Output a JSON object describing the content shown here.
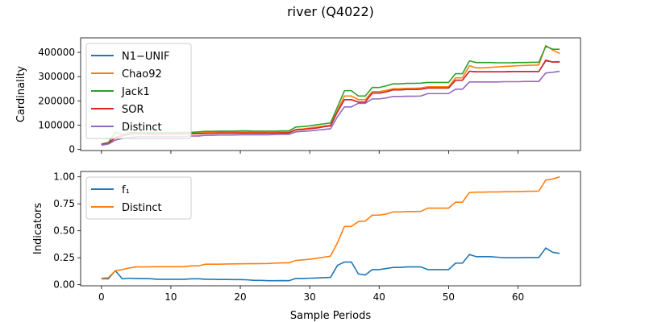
{
  "figure": {
    "title": "river (Q4022)"
  },
  "chart_data": [
    {
      "type": "line",
      "ylabel": "Cardinality",
      "xlabel": "",
      "xlim": [
        -3,
        69
      ],
      "ylim": [
        -5000,
        460000
      ],
      "x_ticks": [
        0,
        10,
        20,
        30,
        40,
        50,
        60
      ],
      "y_ticks": [
        0,
        100000,
        200000,
        300000,
        400000
      ],
      "y_tick_labels": [
        "0",
        "100000",
        "200000",
        "300000",
        "400000"
      ],
      "legend_position": "upper-left",
      "x": [
        0,
        1,
        2,
        3,
        4,
        5,
        6,
        7,
        8,
        9,
        10,
        11,
        12,
        13,
        14,
        15,
        16,
        17,
        18,
        19,
        20,
        21,
        22,
        23,
        24,
        25,
        26,
        27,
        28,
        29,
        30,
        31,
        32,
        33,
        34,
        35,
        36,
        37,
        38,
        39,
        40,
        41,
        42,
        43,
        44,
        45,
        46,
        47,
        48,
        49,
        50,
        51,
        52,
        53,
        54,
        55,
        56,
        57,
        58,
        59,
        60,
        61,
        62,
        63,
        64,
        65,
        66
      ],
      "series": [
        {
          "name": "N1−UNIF",
          "color": "#1f77b4",
          "values": [
            20000,
            25000,
            48000,
            55000,
            62000,
            64000,
            64000,
            63000,
            63000,
            63000,
            63000,
            63000,
            64000,
            64000,
            64000,
            66000,
            66000,
            67000,
            67000,
            67000,
            67000,
            67000,
            67000,
            67000,
            67000,
            67000,
            68000,
            68000,
            80000,
            82000,
            85000,
            88000,
            93000,
            97000,
            155000,
            205000,
            205000,
            195000,
            195000,
            232000,
            232000,
            237000,
            245000,
            245000,
            247000,
            247000,
            248000,
            253000,
            253000,
            253000,
            253000,
            285000,
            285000,
            322000,
            320000,
            320000,
            320000,
            320000,
            320000,
            321000,
            321000,
            321000,
            321000,
            321000,
            365000,
            360000,
            362000
          ]
        },
        {
          "name": "Chao92",
          "color": "#ff7f0e",
          "values": [
            20000,
            25000,
            50000,
            58000,
            65000,
            67000,
            67000,
            66000,
            66000,
            66000,
            66000,
            66000,
            67000,
            67000,
            67000,
            70000,
            70000,
            71000,
            71000,
            71000,
            71000,
            71000,
            70000,
            70000,
            70000,
            70000,
            71000,
            71000,
            82000,
            84000,
            88000,
            92000,
            96000,
            100000,
            160000,
            220000,
            220000,
            205000,
            205000,
            238000,
            238000,
            243000,
            250000,
            250000,
            252000,
            252000,
            253000,
            258000,
            258000,
            258000,
            258000,
            295000,
            295000,
            345000,
            336000,
            336000,
            338000,
            340000,
            342000,
            343000,
            345000,
            346000,
            347000,
            348000,
            428000,
            410000,
            395000
          ]
        },
        {
          "name": "Jack1",
          "color": "#2ca02c",
          "values": [
            22000,
            28000,
            70000,
            62000,
            68000,
            70000,
            70000,
            69000,
            69000,
            69000,
            69000,
            69000,
            70000,
            70000,
            72000,
            74000,
            74000,
            75000,
            75000,
            75000,
            76000,
            76000,
            75000,
            75000,
            75000,
            75000,
            76000,
            76000,
            92000,
            94000,
            97000,
            101000,
            105000,
            109000,
            175000,
            242000,
            242000,
            220000,
            220000,
            255000,
            255000,
            262000,
            270000,
            270000,
            272000,
            272000,
            273000,
            276000,
            276000,
            276000,
            276000,
            312000,
            312000,
            365000,
            358000,
            358000,
            358000,
            357000,
            357000,
            357000,
            358000,
            358000,
            359000,
            359000,
            425000,
            413000,
            413000
          ]
        },
        {
          "name": "SOR",
          "color": "#d62728",
          "values": [
            20000,
            25000,
            48000,
            55000,
            62000,
            64000,
            64000,
            63000,
            63000,
            63000,
            63000,
            63000,
            64000,
            64000,
            64000,
            66000,
            66000,
            67000,
            67000,
            67000,
            67000,
            67000,
            67000,
            67000,
            67000,
            67000,
            68000,
            68000,
            80000,
            82000,
            85000,
            88000,
            93000,
            97000,
            155000,
            205000,
            205000,
            195000,
            195000,
            232000,
            232000,
            237000,
            245000,
            245000,
            247000,
            247000,
            248000,
            253000,
            253000,
            253000,
            253000,
            285000,
            285000,
            322000,
            320000,
            320000,
            320000,
            320000,
            320000,
            321000,
            321000,
            321000,
            321000,
            321000,
            368000,
            360000,
            360000
          ]
        },
        {
          "name": "Distinct",
          "color": "#9467bd",
          "values": [
            17000,
            22000,
            38000,
            45000,
            48000,
            52000,
            52000,
            52000,
            52000,
            52000,
            52000,
            52000,
            53000,
            55000,
            55000,
            58000,
            58000,
            59000,
            59000,
            59000,
            60000,
            60000,
            60000,
            60000,
            60000,
            61000,
            62000,
            62000,
            72000,
            74000,
            76000,
            79000,
            82000,
            85000,
            135000,
            175000,
            175000,
            190000,
            190000,
            208000,
            208000,
            212000,
            218000,
            218000,
            219000,
            219000,
            220000,
            230000,
            230000,
            230000,
            230000,
            248000,
            248000,
            278000,
            278000,
            278000,
            278000,
            278000,
            279000,
            279000,
            279000,
            280000,
            280000,
            280000,
            315000,
            318000,
            322000
          ]
        }
      ]
    },
    {
      "type": "line",
      "ylabel": "Indicators",
      "xlabel": "Sample Periods",
      "xlim": [
        -3,
        69
      ],
      "ylim": [
        -0.01,
        1.05
      ],
      "x_ticks": [
        0,
        10,
        20,
        30,
        40,
        50,
        60
      ],
      "y_ticks": [
        0,
        0.25,
        0.5,
        0.75,
        1.0
      ],
      "y_tick_labels": [
        "0.00",
        "0.25",
        "0.50",
        "0.75",
        "1.00"
      ],
      "legend_position": "upper-left",
      "x": [
        0,
        1,
        2,
        3,
        4,
        5,
        6,
        7,
        8,
        9,
        10,
        11,
        12,
        13,
        14,
        15,
        16,
        17,
        18,
        19,
        20,
        21,
        22,
        23,
        24,
        25,
        26,
        27,
        28,
        29,
        30,
        31,
        32,
        33,
        34,
        35,
        36,
        37,
        38,
        39,
        40,
        41,
        42,
        43,
        44,
        45,
        46,
        47,
        48,
        49,
        50,
        51,
        52,
        53,
        54,
        55,
        56,
        57,
        58,
        59,
        60,
        61,
        62,
        63,
        64,
        65,
        66
      ],
      "series": [
        {
          "name": "f₁",
          "color": "#1f77b4",
          "values": [
            0.055,
            0.055,
            0.13,
            0.055,
            0.06,
            0.058,
            0.057,
            0.056,
            0.05,
            0.05,
            0.05,
            0.05,
            0.05,
            0.055,
            0.055,
            0.05,
            0.05,
            0.048,
            0.048,
            0.047,
            0.047,
            0.045,
            0.04,
            0.04,
            0.037,
            0.037,
            0.038,
            0.037,
            0.058,
            0.058,
            0.06,
            0.062,
            0.065,
            0.068,
            0.18,
            0.21,
            0.21,
            0.1,
            0.09,
            0.14,
            0.14,
            0.15,
            0.16,
            0.16,
            0.165,
            0.165,
            0.165,
            0.14,
            0.14,
            0.14,
            0.14,
            0.2,
            0.2,
            0.28,
            0.26,
            0.26,
            0.26,
            0.255,
            0.25,
            0.25,
            0.25,
            0.252,
            0.252,
            0.252,
            0.34,
            0.3,
            0.29
          ]
        },
        {
          "name": "Distinct",
          "color": "#ff7f0e",
          "values": [
            0.06,
            0.065,
            0.13,
            0.14,
            0.155,
            0.165,
            0.165,
            0.166,
            0.167,
            0.167,
            0.167,
            0.167,
            0.168,
            0.175,
            0.175,
            0.19,
            0.19,
            0.19,
            0.192,
            0.193,
            0.194,
            0.195,
            0.195,
            0.196,
            0.197,
            0.2,
            0.202,
            0.203,
            0.225,
            0.23,
            0.236,
            0.245,
            0.255,
            0.265,
            0.39,
            0.54,
            0.54,
            0.585,
            0.59,
            0.645,
            0.645,
            0.655,
            0.675,
            0.675,
            0.678,
            0.678,
            0.68,
            0.71,
            0.71,
            0.71,
            0.71,
            0.765,
            0.765,
            0.855,
            0.858,
            0.858,
            0.86,
            0.86,
            0.862,
            0.863,
            0.864,
            0.866,
            0.867,
            0.868,
            0.97,
            0.98,
            1.0
          ]
        }
      ]
    }
  ]
}
